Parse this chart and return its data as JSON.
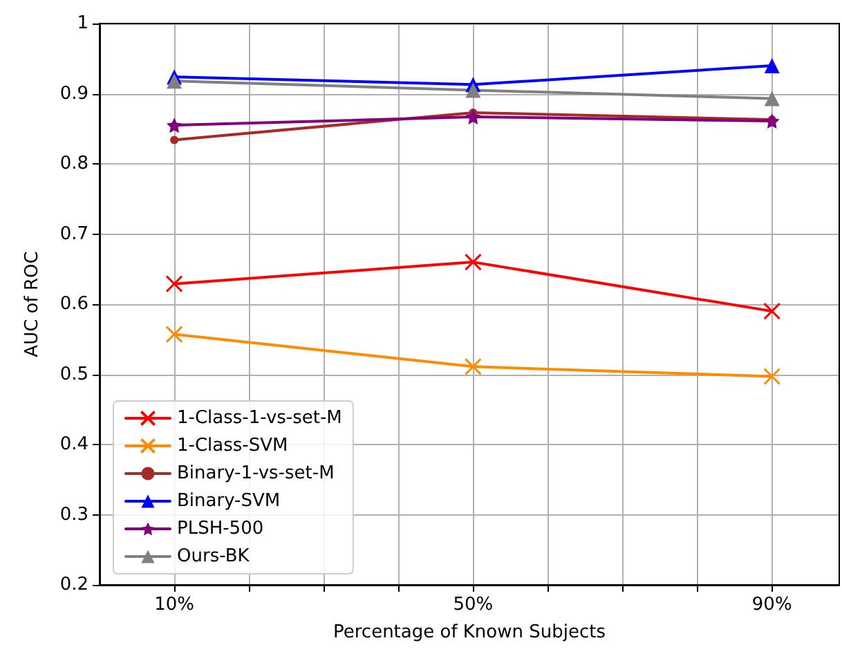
{
  "chart_data": {
    "type": "line",
    "xlabel": "Percentage of Known Subjects",
    "ylabel": "AUC of ROC",
    "x": [
      10,
      50,
      90
    ],
    "xlim": [
      0,
      99
    ],
    "xticks": [
      {
        "value": 10,
        "label": "10%"
      },
      {
        "value": 20,
        "label": null
      },
      {
        "value": 30,
        "label": null
      },
      {
        "value": 40,
        "label": null
      },
      {
        "value": 50,
        "label": "50%"
      },
      {
        "value": 60,
        "label": null
      },
      {
        "value": 70,
        "label": null
      },
      {
        "value": 80,
        "label": null
      },
      {
        "value": 90,
        "label": "90%"
      }
    ],
    "ylim": [
      0.2,
      1.0
    ],
    "yticks": [
      0.2,
      0.3,
      0.4,
      0.5,
      0.6,
      0.7,
      0.8,
      0.9,
      1.0
    ],
    "grid": true,
    "legend": "bottom left",
    "line_style": "solid",
    "series": [
      {
        "name": "1-Class-1-vs-set-M",
        "color": "#ff0000",
        "marker": "cross",
        "values": [
          0.629,
          0.66,
          0.59
        ]
      },
      {
        "name": "1-Class-SVM",
        "color": "#ff8c00",
        "marker": "cross",
        "values": [
          0.557,
          0.511,
          0.497
        ]
      },
      {
        "name": "Binary-1-vs-set-M",
        "color": "#a52a2a",
        "marker": "circle",
        "values": [
          0.834,
          0.873,
          0.863
        ]
      },
      {
        "name": "Binary-SVM",
        "color": "#0000ff",
        "marker": "triangle",
        "values": [
          0.924,
          0.913,
          0.94
        ]
      },
      {
        "name": "PLSH-500",
        "color": "#800080",
        "marker": "star",
        "values": [
          0.855,
          0.867,
          0.861
        ]
      },
      {
        "name": "Ours-BK",
        "color": "#808080",
        "marker": "triangle",
        "values": [
          0.918,
          0.905,
          0.893
        ]
      }
    ]
  }
}
